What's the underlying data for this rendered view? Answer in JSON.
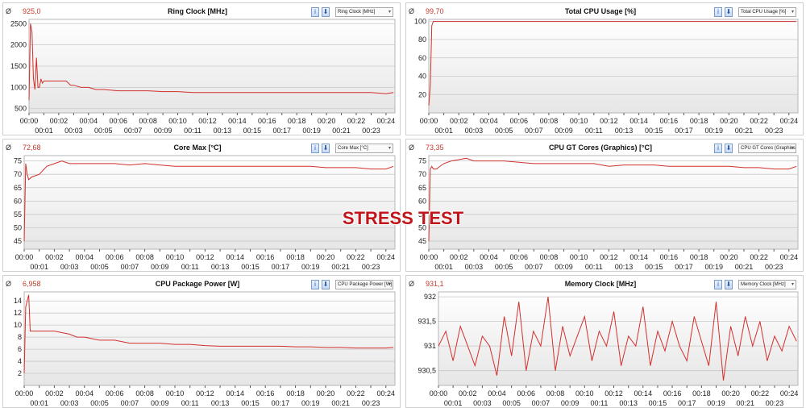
{
  "overlay": {
    "label": "STRESS TEST"
  },
  "value_symbol": "Ø",
  "colors": {
    "line": "#d2302c",
    "current": "#c0392b",
    "grid": "#c8c8c8",
    "plot_top": "#ffffff",
    "plot_bottom": "#e6e6e6"
  },
  "x_ticks": {
    "top": [
      "00:00",
      "00:02",
      "00:04",
      "00:06",
      "00:08",
      "00:10",
      "00:12",
      "00:14",
      "00:16",
      "00:18",
      "00:20",
      "00:22",
      "00:24"
    ],
    "bottom": [
      "00:01",
      "00:03",
      "00:05",
      "00:07",
      "00:09",
      "00:11",
      "00:13",
      "00:15",
      "00:17",
      "00:19",
      "00:21",
      "00:23"
    ]
  },
  "chart_data": [
    {
      "type": "line",
      "title": "Ring Clock [MHz]",
      "current": "925,0",
      "dropdown": "Ring Clock [MHz]",
      "xlim": [
        0,
        24.6
      ],
      "ylim": [
        400,
        2600
      ],
      "yticks": [
        500,
        1000,
        1500,
        2000,
        2500
      ],
      "ytick_labels": [
        "500",
        "1000",
        "1500",
        "2000",
        "2500"
      ],
      "x": [
        0,
        0.1,
        0.2,
        0.3,
        0.4,
        0.5,
        0.6,
        0.7,
        0.8,
        0.9,
        1.0,
        1.5,
        2.0,
        2.5,
        2.8,
        3.0,
        3.5,
        4.0,
        4.5,
        5,
        6,
        7,
        8,
        9,
        10,
        11,
        12,
        13,
        14,
        15,
        16,
        17,
        18,
        19,
        20,
        21,
        22,
        23,
        24,
        24.5
      ],
      "values": [
        700,
        2500,
        2300,
        1200,
        950,
        1700,
        1000,
        1000,
        1200,
        1100,
        1150,
        1150,
        1150,
        1150,
        1050,
        1050,
        1000,
        1000,
        950,
        950,
        920,
        920,
        920,
        900,
        900,
        880,
        880,
        880,
        880,
        880,
        880,
        880,
        880,
        880,
        880,
        880,
        880,
        880,
        850,
        880
      ]
    },
    {
      "type": "line",
      "title": "Total CPU Usage [%]",
      "current": "99,70",
      "dropdown": "Total CPU Usage [%]",
      "xlim": [
        0,
        24.6
      ],
      "ylim": [
        0,
        102
      ],
      "yticks": [
        20,
        40,
        60,
        80,
        100
      ],
      "ytick_labels": [
        "20",
        "40",
        "60",
        "80",
        "100"
      ],
      "x": [
        0,
        0.1,
        0.2,
        0.3,
        0.4,
        0.5,
        1,
        5,
        10,
        15,
        20,
        24.5
      ],
      "values": [
        8,
        30,
        95,
        99.7,
        99.7,
        99.7,
        99.7,
        99.7,
        99.7,
        99.7,
        99.7,
        99.7
      ]
    },
    {
      "type": "line",
      "title": "Core Max [°C]",
      "current": "72,68",
      "dropdown": "Core Max [°C]",
      "xlim": [
        0,
        24.6
      ],
      "ylim": [
        42,
        77
      ],
      "yticks": [
        45,
        50,
        55,
        60,
        65,
        70,
        75
      ],
      "ytick_labels": [
        "45",
        "50",
        "55",
        "60",
        "65",
        "70",
        "75"
      ],
      "x": [
        0,
        0.1,
        0.2,
        0.3,
        0.5,
        1,
        1.5,
        2,
        2.5,
        3,
        4,
        5,
        6,
        7,
        8,
        9,
        10,
        11,
        12,
        13,
        14,
        15,
        16,
        17,
        18,
        19,
        20,
        21,
        22,
        23,
        24,
        24.5
      ],
      "values": [
        45,
        74,
        70,
        68,
        69,
        70,
        73,
        74,
        75,
        74,
        74,
        74,
        74,
        73.5,
        74,
        73.5,
        73,
        73,
        73,
        73,
        73,
        73,
        73,
        73,
        73,
        73,
        72.5,
        72.5,
        72.5,
        72,
        72,
        73
      ]
    },
    {
      "type": "line",
      "title": "CPU GT Cores (Graphics) [°C]",
      "current": "73,35",
      "dropdown": "CPU GT Cores (Graphics)",
      "xlim": [
        0,
        24.6
      ],
      "ylim": [
        42,
        77
      ],
      "yticks": [
        45,
        50,
        55,
        60,
        65,
        70,
        75
      ],
      "ytick_labels": [
        "45",
        "50",
        "55",
        "60",
        "65",
        "70",
        "75"
      ],
      "x": [
        0,
        0.1,
        0.2,
        0.3,
        0.5,
        1,
        1.5,
        2,
        2.5,
        3,
        4,
        5,
        6,
        7,
        8,
        9,
        10,
        11,
        12,
        13,
        14,
        15,
        16,
        17,
        18,
        19,
        20,
        21,
        22,
        23,
        24,
        24.5
      ],
      "values": [
        45,
        72,
        73,
        72,
        72,
        74,
        75,
        75.5,
        76,
        75,
        75,
        75,
        74.5,
        74,
        74,
        74,
        74,
        74,
        73,
        73.5,
        73.5,
        73.5,
        73,
        73,
        73,
        73,
        73,
        72.5,
        72.5,
        72,
        72,
        73
      ]
    },
    {
      "type": "line",
      "title": "CPU Package Power [W]",
      "current": "6,958",
      "dropdown": "CPU Package Power [W]",
      "xlim": [
        0,
        24.6
      ],
      "ylim": [
        0,
        15.5
      ],
      "yticks": [
        2,
        4,
        6,
        8,
        10,
        12,
        14
      ],
      "ytick_labels": [
        "2",
        "4",
        "6",
        "8",
        "10",
        "12",
        "14"
      ],
      "x": [
        0,
        0.1,
        0.2,
        0.3,
        0.4,
        0.5,
        1,
        2,
        3,
        3.5,
        4,
        5,
        6,
        7,
        8,
        9,
        10,
        11,
        12,
        13,
        14,
        15,
        16,
        17,
        18,
        19,
        20,
        21,
        22,
        23,
        24,
        24.5
      ],
      "values": [
        2,
        13,
        14,
        15,
        9,
        9,
        9,
        9,
        8.5,
        8,
        8,
        7.5,
        7.5,
        7,
        7,
        7,
        6.8,
        6.8,
        6.6,
        6.5,
        6.5,
        6.5,
        6.5,
        6.5,
        6.4,
        6.4,
        6.3,
        6.3,
        6.2,
        6.2,
        6.2,
        6.3
      ]
    },
    {
      "type": "line",
      "title": "Memory Clock [MHz]",
      "current": "931,1",
      "dropdown": "Memory Clock [MHz]",
      "xlim": [
        0,
        24.6
      ],
      "ylim": [
        930.2,
        932.1
      ],
      "yticks": [
        930.5,
        931,
        931.5,
        932
      ],
      "ytick_labels": [
        "930,5",
        "931",
        "931,5",
        "932"
      ],
      "x": [
        0,
        0.5,
        1,
        1.5,
        2,
        2.5,
        3,
        3.5,
        4,
        4.5,
        5,
        5.5,
        6,
        6.5,
        7,
        7.5,
        8,
        8.5,
        9,
        9.5,
        10,
        10.5,
        11,
        11.5,
        12,
        12.5,
        13,
        13.5,
        14,
        14.5,
        15,
        15.5,
        16,
        16.5,
        17,
        17.5,
        18,
        18.5,
        19,
        19.5,
        20,
        20.5,
        21,
        21.5,
        22,
        22.5,
        23,
        23.5,
        24,
        24.5
      ],
      "values": [
        931,
        931.3,
        930.7,
        931.4,
        931,
        930.6,
        931.2,
        931,
        930.4,
        931.6,
        930.8,
        931.9,
        930.5,
        931.3,
        931,
        932,
        930.5,
        931.4,
        930.8,
        931.2,
        931.6,
        930.7,
        931.3,
        931,
        931.7,
        930.6,
        931.2,
        931,
        931.8,
        930.6,
        931.3,
        930.9,
        931.5,
        931,
        930.7,
        931.6,
        931.1,
        930.6,
        931.9,
        930.3,
        931.4,
        930.8,
        931.6,
        931,
        931.5,
        930.7,
        931.2,
        930.9,
        931.4,
        931.1
      ]
    }
  ]
}
